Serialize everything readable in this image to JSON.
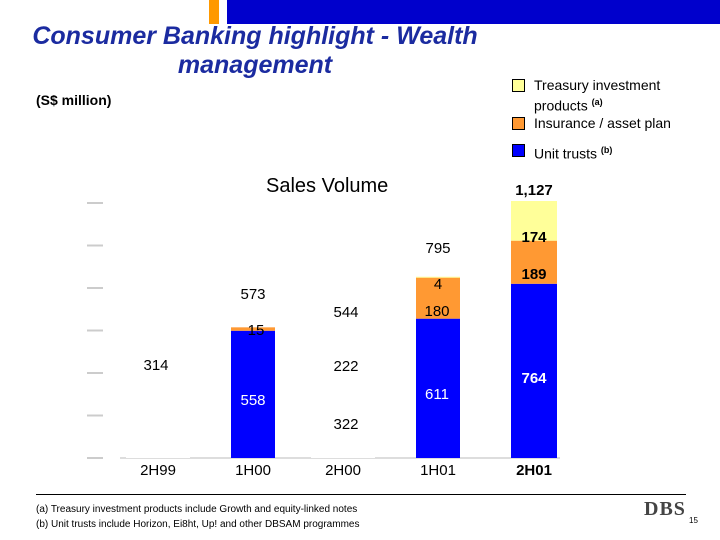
{
  "slide": {
    "title": "Consumer Banking highlight - Wealth management",
    "unit_label": "(S$ million)",
    "chart_heading": "Sales Volume",
    "logo_text": "DBS",
    "page_number": "15",
    "footnotes": [
      "(a)  Treasury investment products include Growth and equity-linked notes",
      "(b)  Unit trusts include Horizon, Ei8ht, Up! and other DBSAM programmes"
    ]
  },
  "legend": [
    {
      "label": "Treasury investment products",
      "sup": "(a)",
      "color": "#ffff99"
    },
    {
      "label": "Insurance / asset plan",
      "sup": "",
      "color": "#ff9933"
    },
    {
      "label": "Unit trusts",
      "sup": "(b)",
      "color": "#0000ff"
    }
  ],
  "chart_data": {
    "type": "bar",
    "stacked": true,
    "categories": [
      "2H99",
      "1H00",
      "2H00",
      "1H01",
      "2H01"
    ],
    "series": [
      {
        "name": "Unit trusts",
        "color": "#0000ff",
        "values": [
          314,
          558,
          322,
          611,
          764
        ]
      },
      {
        "name": "Insurance / asset plan",
        "color": "#ff9933",
        "values": [
          0,
          15,
          222,
          180,
          189
        ]
      },
      {
        "name": "Treasury investment products",
        "color": "#ffff99",
        "values": [
          0,
          0,
          0,
          4,
          174
        ]
      }
    ],
    "totals": [
      314,
      573,
      544,
      795,
      1127
    ],
    "title": "Sales Volume",
    "ylabel": "S$ million",
    "ylim": [
      0,
      1200
    ],
    "highlight_category": "2H01",
    "background_bars": {
      "categories": [
        "2H99",
        "2H00"
      ],
      "values": [
        314,
        544
      ],
      "color": "#ffffff"
    }
  }
}
